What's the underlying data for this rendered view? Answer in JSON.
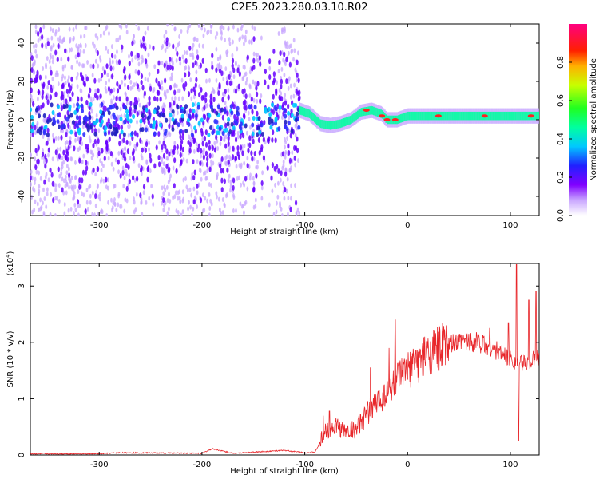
{
  "title": "C2E5.2023.280.03.10.R02",
  "colors": {
    "snr_line": "#e8262a",
    "spectrum_main": "#6600ff",
    "spectrum_faint": "#c7a6ff"
  },
  "chart_data": [
    {
      "type": "heatmap",
      "name": "spectrogram",
      "xlabel": "Height of straight line (km)",
      "ylabel": "Frequency (Hz)",
      "xlim": [
        -367,
        128
      ],
      "ylim": [
        -50,
        50
      ],
      "xticks": [
        -300,
        -200,
        -100,
        0,
        100
      ],
      "yticks": [
        -40,
        -20,
        0,
        20,
        40
      ],
      "colorbar": {
        "label": "Normalized spectral amplitude",
        "range": [
          0,
          1
        ],
        "ticks": [
          0.0,
          0.2,
          0.4,
          0.6,
          0.8
        ],
        "tick_labels": [
          "0.0",
          "0.2",
          "0.4",
          "0.6",
          "0.8"
        ],
        "colormap": "rainbow (white → violet → blue → cyan → green → yellow → red → magenta)"
      },
      "features": {
        "noise_band_x": [
          -367,
          -105
        ],
        "carrier_center_hz": [
          [
            -105,
            5
          ],
          [
            -95,
            3
          ],
          [
            -85,
            -2
          ],
          [
            -75,
            -3
          ],
          [
            -65,
            -2
          ],
          [
            -55,
            0
          ],
          [
            -45,
            4
          ],
          [
            -35,
            5
          ],
          [
            -25,
            3
          ],
          [
            -20,
            0
          ],
          [
            -10,
            0
          ],
          [
            0,
            2
          ],
          [
            20,
            2
          ],
          [
            60,
            2
          ],
          [
            100,
            2
          ],
          [
            128,
            2
          ]
        ]
      }
    },
    {
      "type": "line",
      "name": "snr",
      "xlabel": "Height of straight line (km)",
      "ylabel": "SNR (10 * v/v)",
      "yscale_label": "(x10",
      "yscale_exp": "4",
      "xlim": [
        -367,
        128
      ],
      "ylim": [
        0,
        3.4
      ],
      "xticks": [
        -300,
        -200,
        -100,
        0,
        100
      ],
      "yticks": [
        0,
        1,
        2,
        3
      ],
      "series": [
        {
          "trend": [
            [
              -367,
              0.02
            ],
            [
              -300,
              0.02
            ],
            [
              -280,
              0.04
            ],
            [
              -200,
              0.03
            ],
            [
              -190,
              0.11
            ],
            [
              -170,
              0.03
            ],
            [
              -120,
              0.08
            ],
            [
              -100,
              0.04
            ],
            [
              -90,
              0.05
            ],
            [
              -80,
              0.4
            ],
            [
              -70,
              0.5
            ],
            [
              -60,
              0.4
            ],
            [
              -50,
              0.45
            ],
            [
              -40,
              0.7
            ],
            [
              -30,
              0.9
            ],
            [
              -20,
              1.1
            ],
            [
              -10,
              1.3
            ],
            [
              0,
              1.45
            ],
            [
              10,
              1.6
            ],
            [
              20,
              1.75
            ],
            [
              30,
              1.85
            ],
            [
              40,
              1.93
            ],
            [
              50,
              1.97
            ],
            [
              60,
              2.0
            ],
            [
              70,
              1.98
            ],
            [
              80,
              1.9
            ],
            [
              90,
              1.8
            ],
            [
              100,
              1.7
            ],
            [
              110,
              1.6
            ],
            [
              128,
              1.7
            ]
          ],
          "peaks": [
            [
              -82,
              0.7
            ],
            [
              -76,
              0.78
            ],
            [
              -36,
              1.55
            ],
            [
              -18,
              1.9
            ],
            [
              -12,
              2.4
            ],
            [
              8,
              1.85
            ],
            [
              28,
              1.95
            ],
            [
              55,
              2.07
            ],
            [
              67,
              2.18
            ],
            [
              80,
              2.25
            ],
            [
              98,
              2.35
            ],
            [
              106,
              3.38
            ],
            [
              108,
              0.25
            ],
            [
              118,
              2.75
            ],
            [
              125,
              2.9
            ]
          ]
        }
      ]
    }
  ]
}
